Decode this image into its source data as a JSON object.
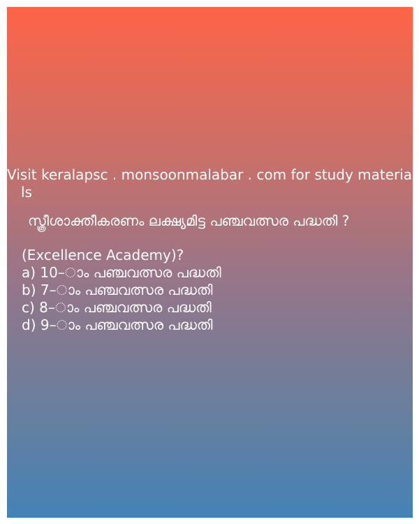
{
  "promo": {
    "line1": "Visit keralapsc . monsoonmalabar . com for study materia",
    "line2": "ls"
  },
  "question": "സ്ത്രീശാക്തീകരണം ലക്ഷ്യമിട്ട പഞ്ചവത്സര പദ്ധതി ?",
  "source": "(Excellence Academy)?",
  "options": [
    "a) 10–ാം പഞ്ചവത്സര പദ്ധതി",
    "b) 7–ാം പഞ്ചവത്സര പദ്ധതി",
    "c) 8–ാം പഞ്ചവത്സര പദ്ധതി",
    "d) 9–ാം പഞ്ചവത്സര പദ്ധതി"
  ],
  "colors": {
    "gradient_top": "#fe6448",
    "gradient_bottom": "#4482b6",
    "text": "#ffffff"
  }
}
